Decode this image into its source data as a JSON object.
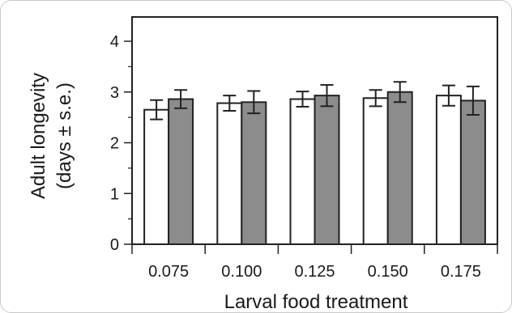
{
  "chart_data": {
    "type": "bar",
    "title": "",
    "xlabel": "Larval food treatment",
    "ylabel_line1": "Adult longevity",
    "ylabel_line2": "(days ± s.e.)",
    "categories": [
      "0.075",
      "0.100",
      "0.125",
      "0.150",
      "0.175"
    ],
    "ylim": [
      0,
      4
    ],
    "yticks": [
      "0",
      "1",
      "2",
      "3",
      "4"
    ],
    "grid": false,
    "legend": "none",
    "series": [
      {
        "color": "#ffffff",
        "values": [
          2.65,
          2.78,
          2.86,
          2.88,
          2.93
        ],
        "errors": [
          0.19,
          0.15,
          0.15,
          0.16,
          0.2
        ]
      },
      {
        "color": "#8c8c8c",
        "values": [
          2.86,
          2.8,
          2.93,
          3.0,
          2.83
        ],
        "errors": [
          0.18,
          0.22,
          0.21,
          0.2,
          0.28
        ]
      }
    ]
  }
}
